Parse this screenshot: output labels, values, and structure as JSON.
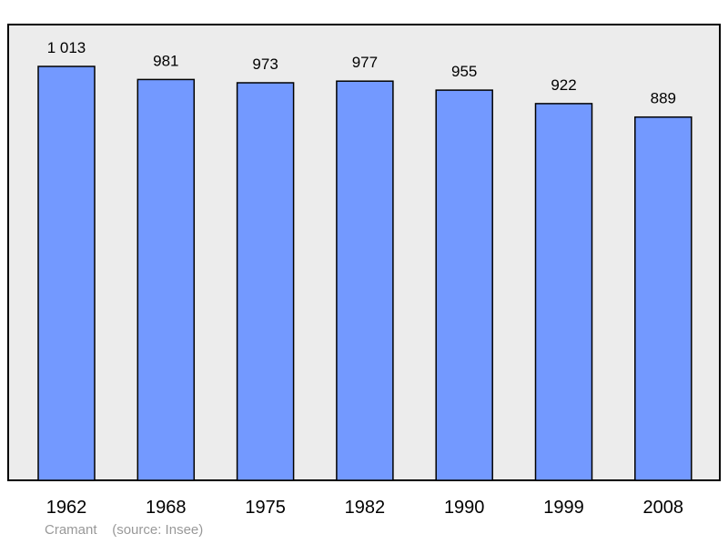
{
  "chart_data": {
    "type": "bar",
    "categories": [
      "1962",
      "1968",
      "1975",
      "1982",
      "1990",
      "1999",
      "2008"
    ],
    "values": [
      1013,
      981,
      973,
      977,
      955,
      922,
      889
    ],
    "value_labels": [
      "1 013",
      "981",
      "973",
      "977",
      "955",
      "922",
      "889"
    ],
    "ylim": [
      0,
      1013
    ],
    "grid": false,
    "legend": "none"
  },
  "caption": {
    "commune": "Cramant",
    "source": "(source: Insee)"
  },
  "colors": {
    "bar_fill": "#7399ff",
    "plot_background": "#ececec",
    "frame": "#000000",
    "caption_text": "#999999"
  }
}
